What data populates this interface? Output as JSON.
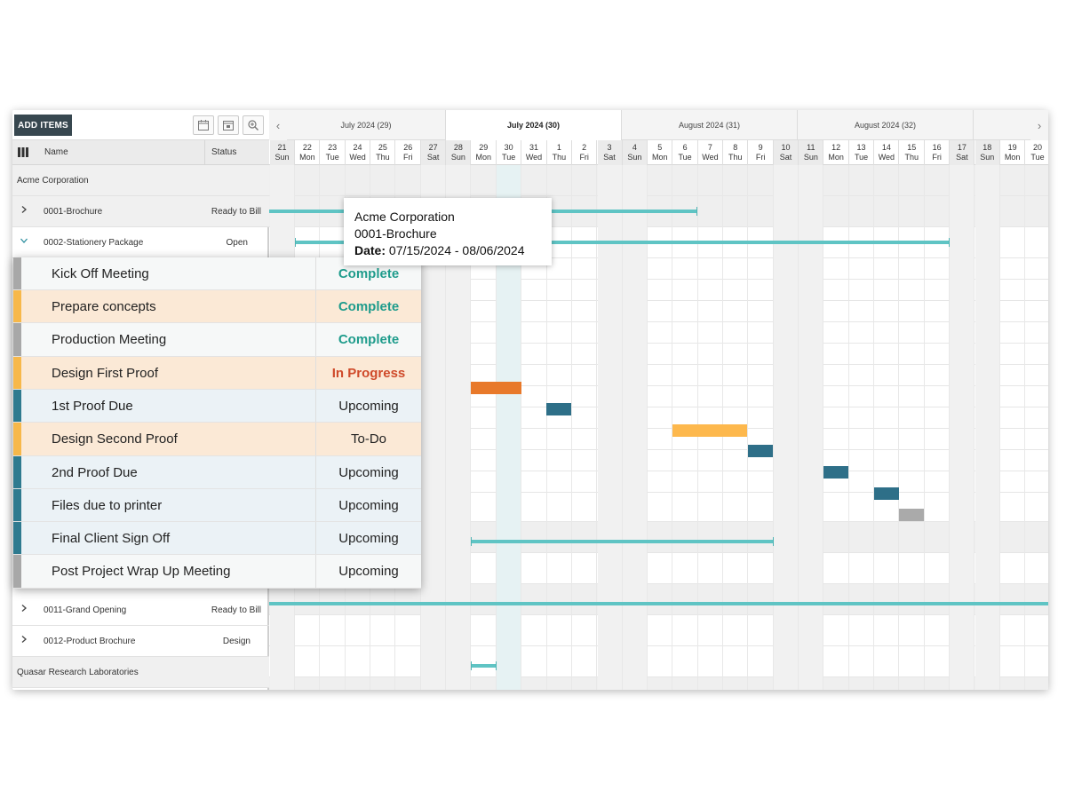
{
  "toolbar": {
    "add_label": "ADD ITEMS",
    "icons": [
      "calendar-icon",
      "calendar-today-icon",
      "zoom-icon"
    ]
  },
  "grid_header": {
    "name": "Name",
    "status": "Status"
  },
  "months": [
    {
      "label": "July 2024 (29)",
      "active": false
    },
    {
      "label": "July 2024 (30)",
      "active": true
    },
    {
      "label": "August 2024 (31)",
      "active": false
    },
    {
      "label": "August 2024 (32)",
      "active": false
    }
  ],
  "days": [
    {
      "num": "21",
      "dow": "Sun",
      "we": true
    },
    {
      "num": "22",
      "dow": "Mon",
      "we": false
    },
    {
      "num": "23",
      "dow": "Tue",
      "we": false
    },
    {
      "num": "24",
      "dow": "Wed",
      "we": false
    },
    {
      "num": "25",
      "dow": "Thu",
      "we": false
    },
    {
      "num": "26",
      "dow": "Fri",
      "we": false
    },
    {
      "num": "27",
      "dow": "Sat",
      "we": true
    },
    {
      "num": "28",
      "dow": "Sun",
      "we": true
    },
    {
      "num": "29",
      "dow": "Mon",
      "we": false
    },
    {
      "num": "30",
      "dow": "Tue",
      "we": false,
      "today": true
    },
    {
      "num": "31",
      "dow": "Wed",
      "we": false
    },
    {
      "num": "1",
      "dow": "Thu",
      "we": false
    },
    {
      "num": "2",
      "dow": "Fri",
      "we": false
    },
    {
      "num": "3",
      "dow": "Sat",
      "we": true
    },
    {
      "num": "4",
      "dow": "Sun",
      "we": true
    },
    {
      "num": "5",
      "dow": "Mon",
      "we": false
    },
    {
      "num": "6",
      "dow": "Tue",
      "we": false
    },
    {
      "num": "7",
      "dow": "Wed",
      "we": false
    },
    {
      "num": "8",
      "dow": "Thu",
      "we": false
    },
    {
      "num": "9",
      "dow": "Fri",
      "we": false
    },
    {
      "num": "10",
      "dow": "Sat",
      "we": true
    },
    {
      "num": "11",
      "dow": "Sun",
      "we": true
    },
    {
      "num": "12",
      "dow": "Mon",
      "we": false
    },
    {
      "num": "13",
      "dow": "Tue",
      "we": false
    },
    {
      "num": "14",
      "dow": "Wed",
      "we": false
    },
    {
      "num": "15",
      "dow": "Thu",
      "we": false
    },
    {
      "num": "16",
      "dow": "Fri",
      "we": false
    },
    {
      "num": "17",
      "dow": "Sat",
      "we": true
    },
    {
      "num": "18",
      "dow": "Sun",
      "we": true
    },
    {
      "num": "19",
      "dow": "Mon",
      "we": false
    },
    {
      "num": "20",
      "dow": "Tue",
      "we": false
    }
  ],
  "left_rows": {
    "acme": {
      "name": "Acme Corporation"
    },
    "brochure": {
      "name": "0001-Brochure",
      "status": "Ready to Bill"
    },
    "stationery": {
      "name": "0002-Stationery Package",
      "status": "Open"
    },
    "grand_opening": {
      "name": "0011-Grand Opening",
      "status": "Ready to Bill"
    },
    "product_brochure": {
      "name": "0012-Product Brochure",
      "status": "Design"
    },
    "quasar": {
      "name": "Quasar Research Laboratories"
    }
  },
  "tooltip": {
    "client": "Acme Corporation",
    "project": "0001-Brochure",
    "date_label": "Date:",
    "date_range": "07/15/2024 - 08/06/2024"
  },
  "tasks": [
    {
      "name": "Kick Off Meeting",
      "status": "Complete",
      "kind": "complete",
      "stripe": "#a8a8a8",
      "bg": "#f6f8f8"
    },
    {
      "name": "Prepare concepts",
      "status": "Complete",
      "kind": "complete",
      "stripe": "#f7b84a",
      "bg": "#fbe9d6"
    },
    {
      "name": "Production Meeting",
      "status": "Complete",
      "kind": "complete",
      "stripe": "#a8a8a8",
      "bg": "#f6f8f8"
    },
    {
      "name": "Design First Proof",
      "status": "In Progress",
      "kind": "inprog",
      "stripe": "#f7b84a",
      "bg": "#fbe9d6"
    },
    {
      "name": "1st Proof Due",
      "status": "Upcoming",
      "kind": "normal",
      "stripe": "#2e7a8f",
      "bg": "#ebf2f6"
    },
    {
      "name": "Design Second Proof",
      "status": "To-Do",
      "kind": "normal",
      "stripe": "#f7b84a",
      "bg": "#fbe9d6"
    },
    {
      "name": "2nd Proof Due",
      "status": "Upcoming",
      "kind": "normal",
      "stripe": "#2e7a8f",
      "bg": "#ebf2f6"
    },
    {
      "name": "Files due to printer",
      "status": "Upcoming",
      "kind": "normal",
      "stripe": "#2e7a8f",
      "bg": "#ebf2f6"
    },
    {
      "name": "Final Client Sign Off",
      "status": "Upcoming",
      "kind": "normal",
      "stripe": "#2e7a8f",
      "bg": "#ebf2f6"
    },
    {
      "name": "Post Project Wrap Up Meeting",
      "status": "Upcoming",
      "kind": "normal",
      "stripe": "#a8a8a8",
      "bg": "#f6f8f8"
    }
  ],
  "colors": {
    "teal_bar": "#5fc4c4",
    "orange": "#e8792a",
    "yellow": "#fdb84d",
    "dark_teal": "#2e6f88",
    "gray": "#aaaaaa",
    "complete": "#1f9c8c",
    "in_progress": "#cf4a2a"
  }
}
